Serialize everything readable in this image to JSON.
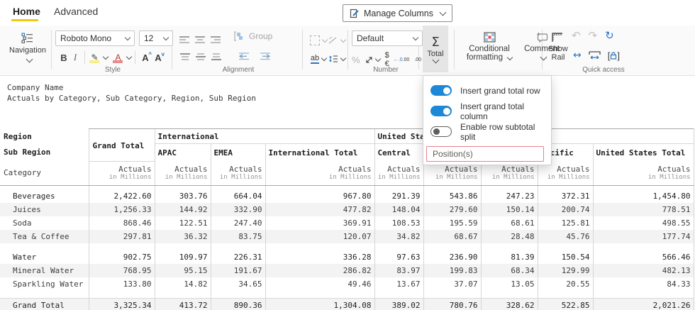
{
  "tabs": {
    "home": "Home",
    "advanced": "Advanced"
  },
  "manage_columns": {
    "label": "Manage Columns"
  },
  "ribbon": {
    "navigation": {
      "label": "Navigation"
    },
    "style": {
      "label": "Style",
      "font_name": "Roboto Mono",
      "font_size": "12"
    },
    "alignment": {
      "label": "Alignment",
      "group_button": "Group"
    },
    "number": {
      "label": "Number",
      "format": "Default"
    },
    "total": {
      "label": "Total"
    },
    "conditional_formatting": {
      "line1": "Conditional",
      "line2": "formatting"
    },
    "comment": {
      "label": "Comment"
    },
    "show_rail": {
      "line1": "Show",
      "line2": "Rail"
    },
    "quick_access": {
      "label": "Quick access"
    },
    "icons": {
      "bold": "B",
      "italic": "I",
      "pen": "✎",
      "font_color": "A",
      "grow_font": "A",
      "shrink_font": "A",
      "percent": "%",
      "currency": "$€",
      "dec_inc_top": "←.0",
      "dec_inc_bottom": ".00",
      "dec_dec_top": ".00",
      "dec_dec_bottom": "→.0",
      "sigma": "Σ",
      "wrap": "ab",
      "undo": "↶",
      "redo": "↷",
      "reset": "↻",
      "fit_width": "↔",
      "bracket_l": "[",
      "bracket_r": "]"
    }
  },
  "total_menu": {
    "items": [
      {
        "label": "Insert grand total row",
        "state": "on"
      },
      {
        "label": "Insert grand total column",
        "state": "on"
      },
      {
        "label": "Enable row subtotal split",
        "state": "off"
      }
    ],
    "position_placeholder": "Position(s)"
  },
  "report": {
    "title": "Company Name",
    "subtitle": "Actuals by Category, Sub Category, Region, Sub Region"
  },
  "table": {
    "row_header_labels": {
      "region": "Region",
      "sub_region": "Sub Region",
      "category": "Category"
    },
    "measure_label": "Actuals",
    "measure_sub_label": "in Millions",
    "grand_total_column": "Grand Total",
    "groups": [
      {
        "label": "International",
        "span": 3
      },
      {
        "label": "United States",
        "span": 5
      }
    ],
    "sub_columns": [
      "APAC",
      "EMEA",
      "International Total",
      "Central",
      "",
      "",
      "Pacific",
      "United States Total"
    ],
    "rows": [
      {
        "label": "Beverages",
        "bold": true,
        "values": [
          "2,422.60",
          "303.76",
          "664.04",
          "967.80",
          "291.39",
          "543.86",
          "247.23",
          "372.31",
          "1,454.80"
        ]
      },
      {
        "label": "Juices",
        "values": [
          "1,256.33",
          "144.92",
          "332.90",
          "477.82",
          "148.04",
          "279.60",
          "150.14",
          "200.74",
          "778.51"
        ]
      },
      {
        "label": "Soda",
        "values": [
          "868.46",
          "122.51",
          "247.40",
          "369.91",
          "108.53",
          "195.59",
          "68.61",
          "125.81",
          "498.55"
        ]
      },
      {
        "label": "Tea & Coffee",
        "spacer_after": true,
        "values": [
          "297.81",
          "36.32",
          "83.75",
          "120.07",
          "34.82",
          "68.67",
          "28.48",
          "45.76",
          "177.74"
        ]
      },
      {
        "label": "Water",
        "bold": true,
        "values": [
          "902.75",
          "109.97",
          "226.31",
          "336.28",
          "97.63",
          "236.90",
          "81.39",
          "150.54",
          "566.46"
        ]
      },
      {
        "label": "Mineral Water",
        "values": [
          "768.95",
          "95.15",
          "191.67",
          "286.82",
          "83.97",
          "199.83",
          "68.34",
          "129.99",
          "482.13"
        ]
      },
      {
        "label": "Sparkling Water",
        "spacer_after": true,
        "values": [
          "133.80",
          "14.82",
          "34.65",
          "49.46",
          "13.67",
          "37.07",
          "13.05",
          "20.55",
          "84.33"
        ]
      },
      {
        "label": "Grand Total",
        "bold": true,
        "grand": true,
        "values": [
          "3,325.34",
          "413.72",
          "890.36",
          "1,304.08",
          "389.02",
          "780.76",
          "328.62",
          "522.85",
          "2,021.26"
        ]
      }
    ]
  },
  "colors": {
    "accent_yellow": "#f2c811",
    "toggle_on_blue": "#1d87d8",
    "icon_blue": "#2b74c4",
    "position_input_border": "#ea8089",
    "row_stripe": "#f3f3f3"
  }
}
